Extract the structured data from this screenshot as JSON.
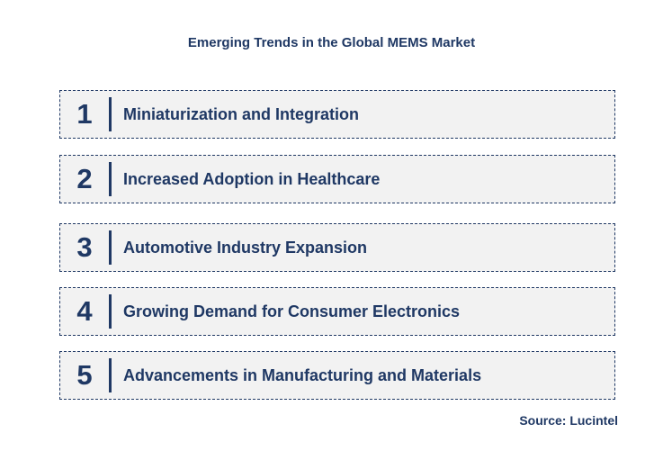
{
  "title": "Emerging Trends in the Global MEMS Market",
  "trends": [
    {
      "number": "1",
      "label": "Miniaturization and Integration"
    },
    {
      "number": "2",
      "label": "Increased Adoption in Healthcare"
    },
    {
      "number": "3",
      "label": "Automotive Industry Expansion"
    },
    {
      "number": "4",
      "label": "Growing Demand for Consumer Electronics"
    },
    {
      "number": "5",
      "label": "Advancements in Manufacturing and Materials"
    }
  ],
  "source": "Source: Lucintel",
  "colors": {
    "text": "#1f3864",
    "box_background": "#f2f2f2",
    "border": "#1f3864"
  }
}
